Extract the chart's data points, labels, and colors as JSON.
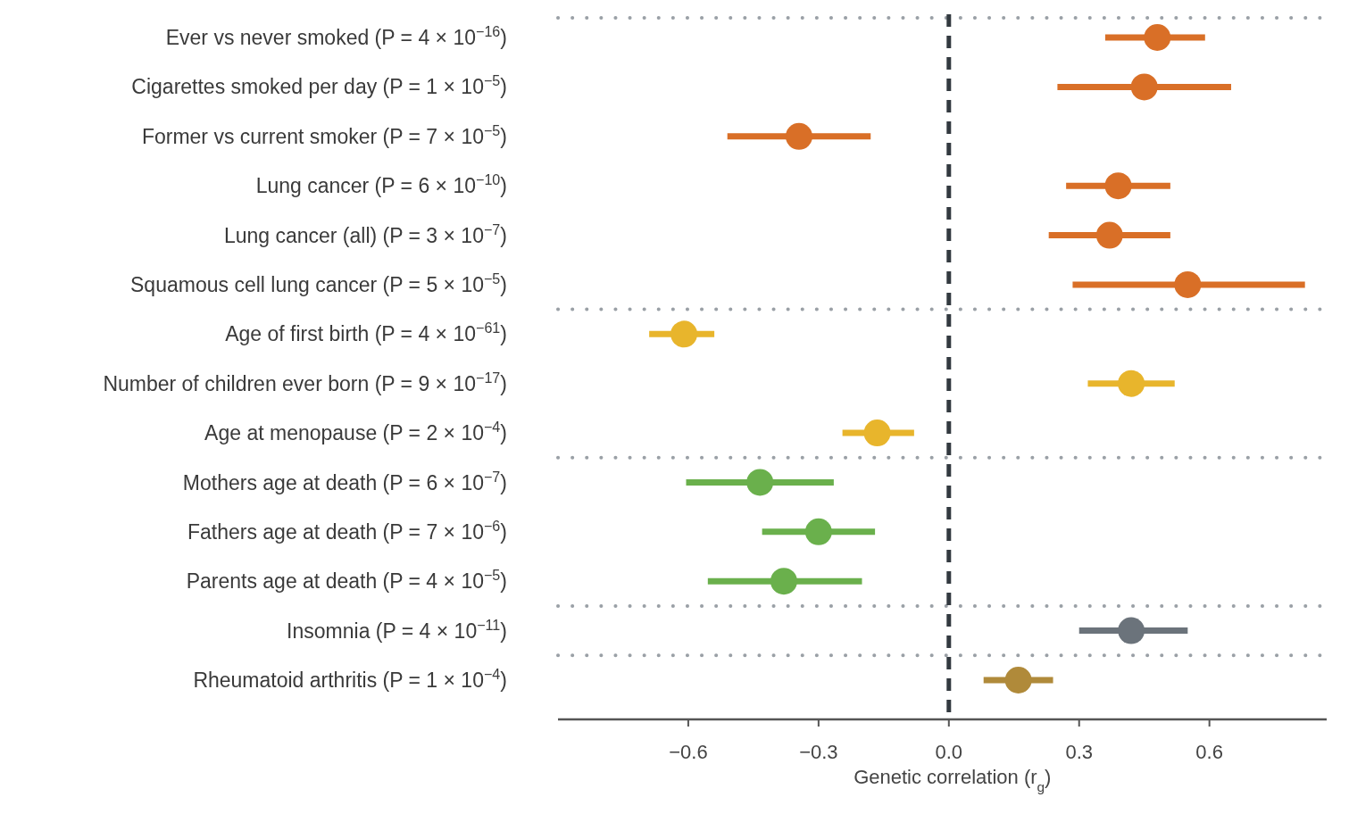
{
  "chart_data": {
    "type": "scatter",
    "orientation": "horizontal",
    "categories": [
      "Ever vs never smoked (P = 4 × 10$^{−16}$)",
      "Cigarettes smoked per day (P = 1 × 10$^{−5}$)",
      "Former vs current smoker (P = 7 × 10$^{−5}$)",
      "Lung cancer (P = 6 × 10$^{−10}$)",
      "Lung cancer (all) (P = 3 × 10$^{−7}$)",
      "Squamous cell lung cancer (P = 5 × 10$^{−5}$)",
      "Age of first birth (P = 4 × 10$^{−61}$)",
      "Number of children ever born (P = 9 × 10$^{−17}$)",
      "Age at menopause (P = 2 × 10$^{−4}$)",
      "Mothers age at death (P = 6 × 10$^{−7}$)",
      "Fathers age at death (P = 7 × 10$^{−6}$)",
      "Parents age at death (P = 4 × 10$^{−5}$)",
      "Insomnia (P = 4 × 10$^{−11}$)",
      "Rheumatoid arthritis (P = 1 × 10$^{−4}$)"
    ],
    "series": [
      {
        "color": "#d96f27",
        "values": [
          0.48,
          0.45,
          -0.345,
          0.39,
          0.37,
          0.55,
          null,
          null,
          null,
          null,
          null,
          null,
          null,
          null
        ],
        "errors": [
          [
            0.36,
            0.59
          ],
          [
            0.25,
            0.65
          ],
          [
            -0.51,
            -0.18
          ],
          [
            0.27,
            0.51
          ],
          [
            0.23,
            0.51
          ],
          [
            0.285,
            0.82
          ],
          null,
          null,
          null,
          null,
          null,
          null,
          null,
          null
        ]
      },
      {
        "color": "#e8b52c",
        "values": [
          null,
          null,
          null,
          null,
          null,
          null,
          -0.61,
          0.42,
          -0.165,
          null,
          null,
          null,
          null,
          null
        ],
        "errors": [
          null,
          null,
          null,
          null,
          null,
          null,
          [
            -0.69,
            -0.54
          ],
          [
            0.32,
            0.52
          ],
          [
            -0.245,
            -0.08
          ],
          null,
          null,
          null,
          null,
          null
        ]
      },
      {
        "color": "#6ab04c",
        "values": [
          null,
          null,
          null,
          null,
          null,
          null,
          null,
          null,
          null,
          -0.435,
          -0.3,
          -0.38,
          null,
          null
        ],
        "errors": [
          null,
          null,
          null,
          null,
          null,
          null,
          null,
          null,
          null,
          [
            -0.605,
            -0.265
          ],
          [
            -0.43,
            -0.17
          ],
          [
            -0.555,
            -0.2
          ],
          null,
          null
        ]
      },
      {
        "color": "#6b737b",
        "values": [
          null,
          null,
          null,
          null,
          null,
          null,
          null,
          null,
          null,
          null,
          null,
          null,
          0.42,
          null
        ],
        "errors": [
          null,
          null,
          null,
          null,
          null,
          null,
          null,
          null,
          null,
          null,
          null,
          null,
          [
            0.3,
            0.55
          ],
          null
        ]
      },
      {
        "color": "#b08a3a",
        "values": [
          null,
          null,
          null,
          null,
          null,
          null,
          null,
          null,
          null,
          null,
          null,
          null,
          null,
          0.16
        ],
        "errors": [
          null,
          null,
          null,
          null,
          null,
          null,
          null,
          null,
          null,
          null,
          null,
          null,
          null,
          [
            0.08,
            0.24
          ]
        ]
      }
    ],
    "xlim": [
      -0.9,
      0.87
    ],
    "xticks": [
      {
        "value": -0.6,
        "label": "−0.6"
      },
      {
        "value": -0.3,
        "label": "−0.3"
      },
      {
        "value": 0,
        "label": "0.0"
      },
      {
        "value": 0.3,
        "label": "0.3"
      },
      {
        "value": 0.6,
        "label": "0.6"
      }
    ],
    "xlabel": "Genetic correlation (r$_{g}$)",
    "ref_lines": [
      {
        "axis": "x",
        "value": 0,
        "color": "#333a40",
        "line_style": "dashed"
      }
    ],
    "marker": "circle",
    "grid": false
  }
}
